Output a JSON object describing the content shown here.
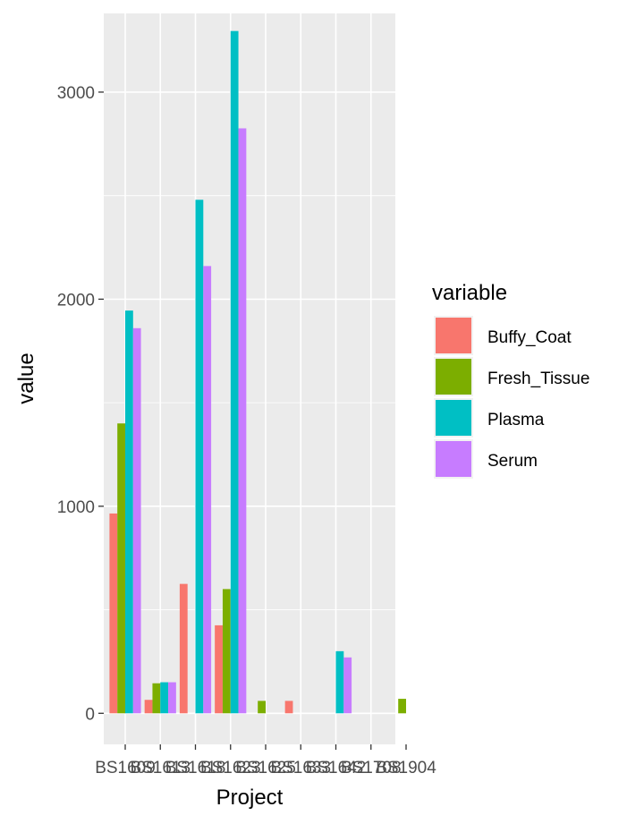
{
  "chart_data": {
    "type": "bar",
    "xlabel": "Project",
    "ylabel": "value",
    "ylim": [
      -150,
      3380
    ],
    "y_ticks": [
      0,
      1000,
      2000,
      3000
    ],
    "y_tick_labels": [
      "0",
      "1000",
      "2000",
      "3000"
    ],
    "grid": true,
    "legend": {
      "title": "variable",
      "placement": "right"
    },
    "categories": [
      "BS1609",
      "BS1613",
      "BS1618",
      "BS1623",
      "BS1625",
      "BS1633",
      "BS1642",
      "BS1708",
      "BS1904"
    ],
    "series": [
      {
        "name": "Buffy_Coat",
        "color": "#F8766D",
        "values": [
          965,
          65,
          625,
          425,
          0,
          60,
          0,
          0,
          0
        ]
      },
      {
        "name": "Fresh_Tissue",
        "color": "#7CAE00",
        "values": [
          1400,
          145,
          0,
          600,
          60,
          0,
          0,
          0,
          70
        ]
      },
      {
        "name": "Plasma",
        "color": "#00BFC4",
        "values": [
          1945,
          150,
          2480,
          3295,
          0,
          0,
          300,
          0,
          0
        ]
      },
      {
        "name": "Serum",
        "color": "#C77CFF",
        "values": [
          1860,
          150,
          2160,
          2825,
          0,
          0,
          270,
          0,
          0
        ]
      }
    ]
  }
}
